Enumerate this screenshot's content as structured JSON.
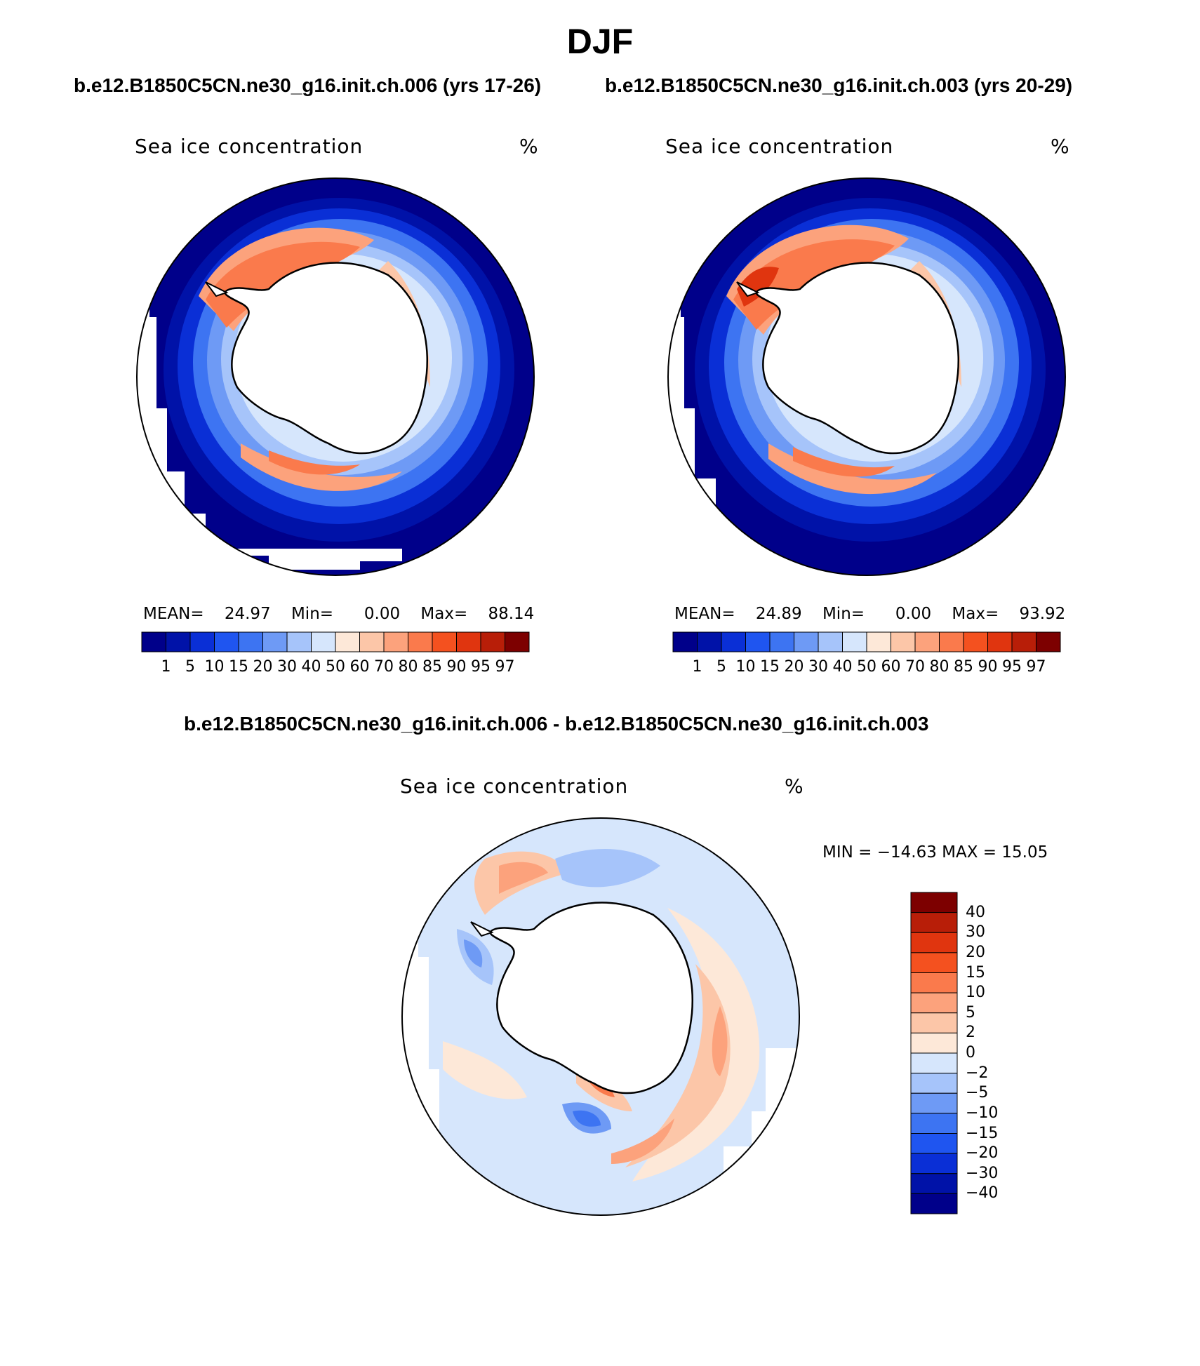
{
  "figure": {
    "title": "DJF",
    "case_a_label": "b.e12.B1850C5CN.ne30_g16.init.ch.006 (yrs 17-26)",
    "case_b_label": "b.e12.B1850C5CN.ne30_g16.init.ch.003 (yrs 20-29)",
    "diff_label": "b.e12.B1850C5CN.ne30_g16.init.ch.006 - b.e12.B1850C5CN.ne30_g16.init.ch.003"
  },
  "panels": [
    {
      "variable": "Sea ice concentration",
      "units": "%",
      "stats": {
        "mean_label": "MEAN=",
        "mean": "24.97",
        "min_label": "Min=",
        "min": "0.00",
        "max_label": "Max=",
        "max": "88.14"
      }
    },
    {
      "variable": "Sea ice concentration",
      "units": "%",
      "stats": {
        "mean_label": "MEAN=",
        "mean": "24.89",
        "min_label": "Min=",
        "min": "0.00",
        "max_label": "Max=",
        "max": "93.92"
      }
    }
  ],
  "diff_panel": {
    "variable": "Sea ice concentration",
    "units": "%",
    "minmax": "MIN = −14.63 MAX =   15.05"
  },
  "colorbar_abs": {
    "levels": [
      "1",
      "5",
      "10",
      "15",
      "20",
      "30",
      "40",
      "50",
      "60",
      "70",
      "80",
      "85",
      "90",
      "95",
      "97"
    ],
    "colors": [
      "#00008a",
      "#0012a8",
      "#0a2fd6",
      "#1f55f0",
      "#3d74f2",
      "#6e9af5",
      "#a6c4fa",
      "#d6e6fc",
      "#fde8d8",
      "#fcc6a8",
      "#fca27c",
      "#fa7a4c",
      "#f4511f",
      "#e0350f",
      "#b81e08",
      "#7d0000"
    ]
  },
  "colorbar_diff": {
    "levels": [
      "40",
      "30",
      "20",
      "15",
      "10",
      "5",
      "2",
      "0",
      "−2",
      "−5",
      "−10",
      "−15",
      "−20",
      "−30",
      "−40"
    ],
    "colors": [
      "#7d0000",
      "#b81e08",
      "#e0350f",
      "#f4511f",
      "#fa7a4c",
      "#fca27c",
      "#fcc6a8",
      "#fde8d8",
      "#d6e6fc",
      "#a6c4fa",
      "#6e9af5",
      "#3d74f2",
      "#1f55f0",
      "#0a2fd6",
      "#0012a8",
      "#00008a"
    ]
  },
  "colors": {
    "land": "#ffffff",
    "coast": "#000000",
    "ocean_far": "#00008a"
  }
}
